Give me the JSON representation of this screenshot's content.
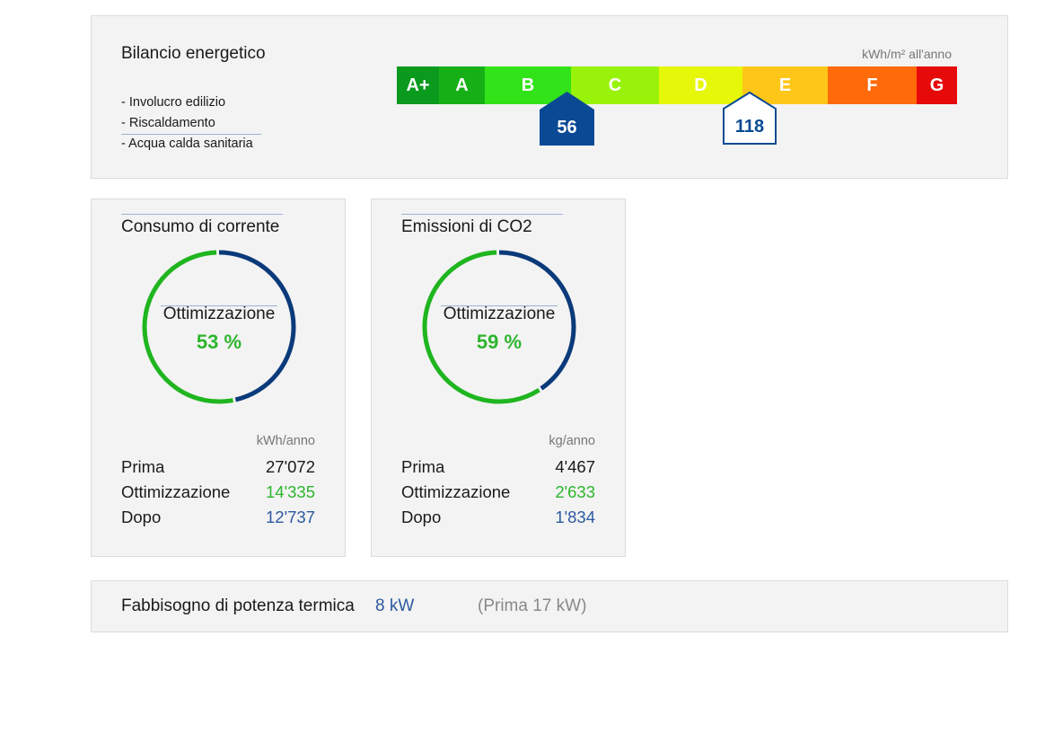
{
  "energy_balance": {
    "title": "Bilancio energetico",
    "unit": "kWh/m² all'anno",
    "categories": [
      "- Involucro edilizio",
      "- Riscaldamento",
      "- Acqua calda sanitaria"
    ],
    "scale": [
      {
        "label": "A+",
        "color": "#0a9a1e"
      },
      {
        "label": "A",
        "color": "#16b016"
      },
      {
        "label": "B",
        "color": "#33e31a"
      },
      {
        "label": "C",
        "color": "#99f20a"
      },
      {
        "label": "D",
        "color": "#e6f70a"
      },
      {
        "label": "E",
        "color": "#ffc61a"
      },
      {
        "label": "F",
        "color": "#ff6a0a"
      },
      {
        "label": "G",
        "color": "#e60a0a"
      }
    ],
    "marker_after": "56",
    "marker_before": "118"
  },
  "cards": [
    {
      "title": "Consumo di corrente",
      "ring_label": "Ottimizzazione",
      "percent_text": "53 %",
      "percent_value": 53,
      "unit": "kWh/anno",
      "rows": [
        {
          "label": "Prima",
          "value": "27'072"
        },
        {
          "label": "Ottimizzazione",
          "value": "14'335"
        },
        {
          "label": "Dopo",
          "value": "12'737"
        }
      ]
    },
    {
      "title": "Emissioni di CO2",
      "ring_label": "Ottimizzazione",
      "percent_text": "59 %",
      "percent_value": 59,
      "unit": "kg/anno",
      "rows": [
        {
          "label": "Prima",
          "value": "4'467"
        },
        {
          "label": "Ottimizzazione",
          "value": "2'633"
        },
        {
          "label": "Dopo",
          "value": "1'834"
        }
      ]
    }
  ],
  "thermal": {
    "label": "Fabbisogno di potenza termica",
    "value": "8 kW",
    "previous": "(Prima 17 kW)"
  },
  "colors": {
    "green": "#2db52d",
    "ring_green": "#1fb51f",
    "ring_blue": "#0a3a7a",
    "value_blue": "#2d5aa0",
    "marker_blue": "#0a4a94"
  }
}
